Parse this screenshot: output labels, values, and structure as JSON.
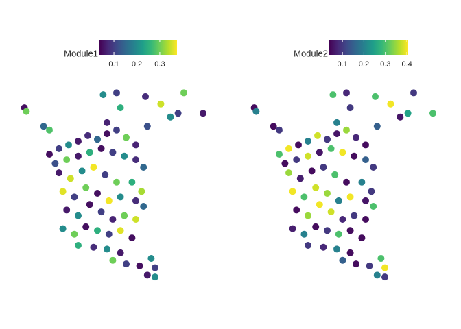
{
  "chart_data": [
    {
      "type": "scatter",
      "legend_title": "Module1",
      "xlim": [
        0,
        100
      ],
      "ylim": [
        -5,
        100
      ],
      "clim": [
        0.037,
        0.375
      ],
      "cticks": [
        0.1,
        0.2,
        0.3
      ],
      "x": [
        2,
        3,
        43,
        50,
        52,
        65,
        73,
        85,
        82,
        78,
        95,
        12,
        15,
        45,
        66,
        15,
        20,
        25,
        30,
        35,
        40,
        45,
        50,
        55,
        60,
        18,
        24,
        30,
        36,
        42,
        48,
        54,
        60,
        64,
        20,
        26,
        32,
        38,
        44,
        50,
        58,
        63,
        22,
        28,
        34,
        40,
        46,
        52,
        60,
        64,
        24,
        30,
        36,
        42,
        48,
        54,
        60,
        22,
        28,
        34,
        40,
        46,
        52,
        58,
        30,
        38,
        45,
        52,
        48,
        55,
        62,
        68,
        70,
        66,
        70
      ],
      "y": [
        90,
        88,
        97,
        98,
        90,
        96,
        92,
        98,
        87,
        85,
        87,
        80,
        78,
        82,
        80,
        65,
        68,
        70,
        72,
        75,
        73,
        76,
        78,
        74,
        70,
        60,
        62,
        64,
        66,
        68,
        66,
        64,
        62,
        58,
        55,
        52,
        56,
        58,
        54,
        50,
        50,
        45,
        45,
        42,
        47,
        44,
        40,
        42,
        40,
        37,
        35,
        32,
        38,
        34,
        30,
        32,
        30,
        25,
        22,
        26,
        24,
        22,
        24,
        20,
        16,
        15,
        14,
        12,
        8,
        6,
        5,
        9,
        4,
        0,
        -1
      ],
      "values": [
        0.05,
        0.3,
        0.2,
        0.1,
        0.25,
        0.08,
        0.35,
        0.3,
        0.1,
        0.2,
        0.06,
        0.15,
        0.28,
        0.07,
        0.12,
        0.05,
        0.1,
        0.2,
        0.06,
        0.08,
        0.15,
        0.05,
        0.1,
        0.3,
        0.07,
        0.12,
        0.3,
        0.06,
        0.25,
        0.05,
        0.1,
        0.2,
        0.08,
        0.15,
        0.06,
        0.35,
        0.2,
        0.37,
        0.1,
        0.3,
        0.25,
        0.33,
        0.36,
        0.1,
        0.3,
        0.05,
        0.37,
        0.2,
        0.08,
        0.15,
        0.06,
        0.2,
        0.05,
        0.1,
        0.07,
        0.3,
        0.35,
        0.2,
        0.3,
        0.05,
        0.25,
        0.1,
        0.36,
        0.05,
        0.25,
        0.08,
        0.2,
        0.06,
        0.3,
        0.1,
        0.05,
        0.2,
        0.1,
        0.06,
        0.2
      ]
    },
    {
      "type": "scatter",
      "legend_title": "Module2",
      "xlim": [
        0,
        100
      ],
      "ylim": [
        -5,
        100
      ],
      "clim": [
        0.039,
        0.406
      ],
      "cticks": [
        0.1,
        0.2,
        0.3,
        0.4
      ],
      "x": [
        2,
        3,
        43,
        50,
        52,
        65,
        73,
        85,
        82,
        78,
        95,
        12,
        15,
        45,
        66,
        15,
        20,
        25,
        30,
        35,
        40,
        45,
        50,
        55,
        60,
        18,
        24,
        30,
        36,
        42,
        48,
        54,
        60,
        64,
        20,
        26,
        32,
        38,
        44,
        50,
        58,
        63,
        22,
        28,
        34,
        40,
        46,
        52,
        60,
        64,
        24,
        30,
        36,
        42,
        48,
        54,
        60,
        22,
        28,
        34,
        40,
        46,
        52,
        58,
        30,
        38,
        45,
        52,
        48,
        55,
        62,
        68,
        70,
        66,
        70
      ],
      "y": [
        90,
        88,
        97,
        98,
        90,
        96,
        92,
        98,
        87,
        85,
        87,
        80,
        78,
        82,
        80,
        65,
        68,
        70,
        72,
        75,
        73,
        76,
        78,
        74,
        70,
        60,
        62,
        64,
        66,
        68,
        66,
        64,
        62,
        58,
        55,
        52,
        56,
        58,
        54,
        50,
        50,
        45,
        45,
        42,
        47,
        44,
        40,
        42,
        40,
        37,
        35,
        32,
        38,
        34,
        30,
        32,
        30,
        25,
        22,
        26,
        24,
        22,
        24,
        20,
        16,
        15,
        14,
        12,
        8,
        6,
        5,
        9,
        4,
        0,
        -1
      ],
      "values": [
        0.05,
        0.2,
        0.3,
        0.08,
        0.1,
        0.3,
        0.4,
        0.1,
        0.25,
        0.06,
        0.3,
        0.05,
        0.1,
        0.2,
        0.15,
        0.3,
        0.4,
        0.05,
        0.2,
        0.38,
        0.1,
        0.06,
        0.35,
        0.08,
        0.05,
        0.05,
        0.1,
        0.38,
        0.06,
        0.3,
        0.4,
        0.05,
        0.15,
        0.1,
        0.35,
        0.07,
        0.05,
        0.1,
        0.3,
        0.05,
        0.2,
        0.1,
        0.4,
        0.3,
        0.38,
        0.35,
        0.2,
        0.4,
        0.06,
        0.3,
        0.05,
        0.35,
        0.4,
        0.38,
        0.08,
        0.1,
        0.05,
        0.07,
        0.2,
        0.05,
        0.1,
        0.3,
        0.05,
        0.05,
        0.1,
        0.08,
        0.2,
        0.05,
        0.15,
        0.05,
        0.1,
        0.3,
        0.4,
        0.2,
        0.1
      ]
    }
  ]
}
